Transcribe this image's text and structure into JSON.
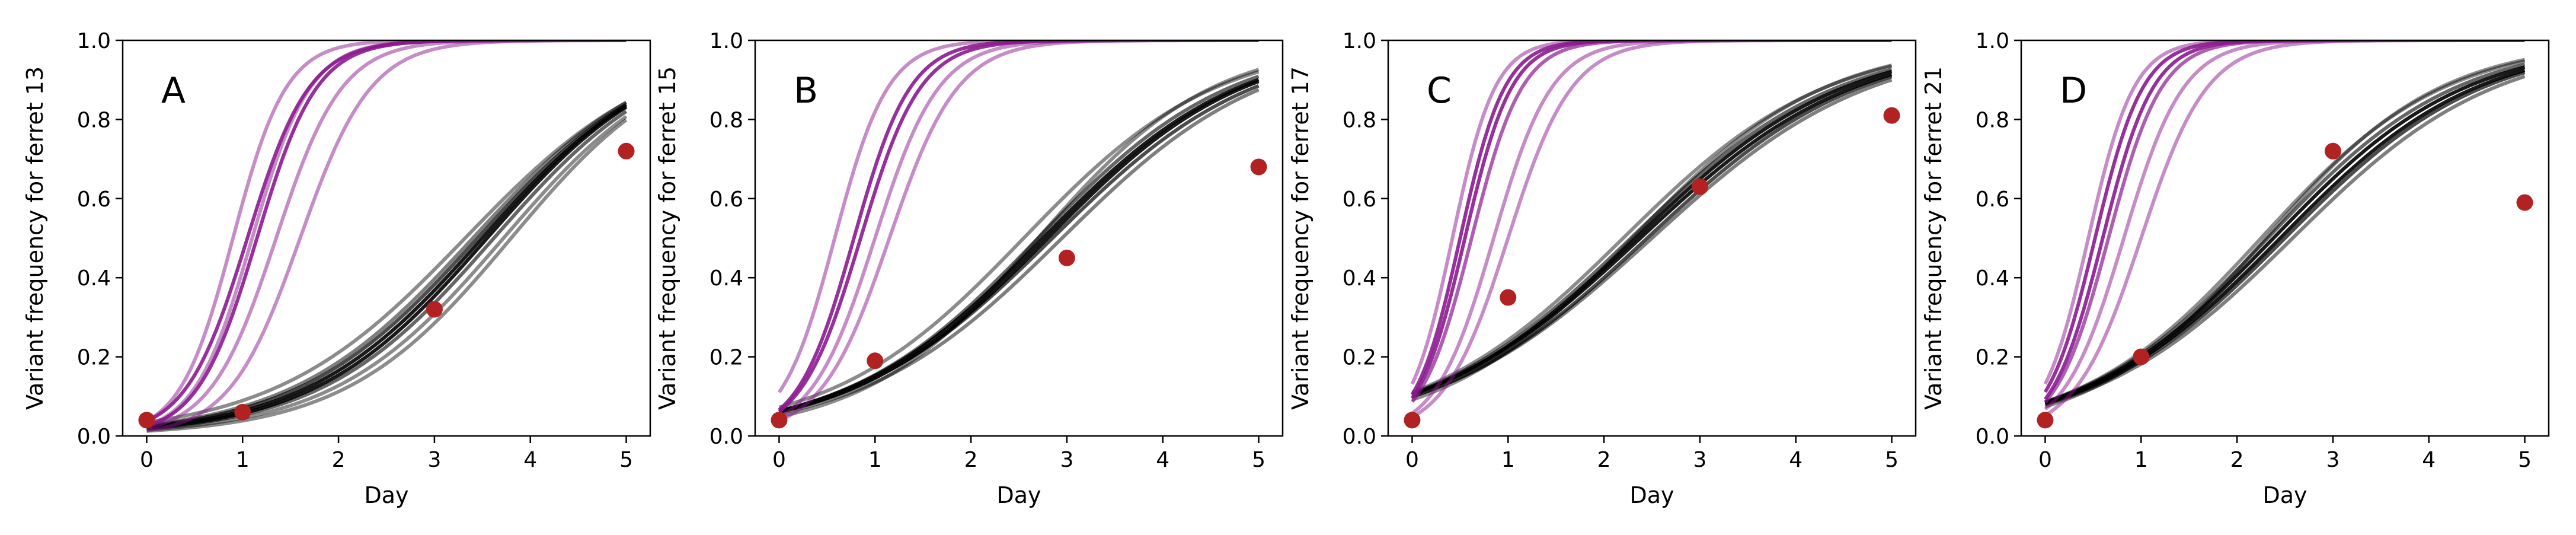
{
  "colors": {
    "purple": "#8b1a8f",
    "black": "#000000",
    "dot": "#b22222"
  },
  "chart_data": [
    {
      "type": "line",
      "panel_label": "A",
      "xlabel": "Day",
      "ylabel": "Variant frequency for ferret 13",
      "xlim": [
        -0.25,
        5.25
      ],
      "ylim": [
        0.0,
        1.0
      ],
      "xticks": [
        "0",
        "1",
        "2",
        "3",
        "4",
        "5"
      ],
      "yticks": [
        "0.0",
        "0.2",
        "0.4",
        "0.6",
        "0.8",
        "1.0"
      ],
      "grid": false,
      "observed": {
        "name": "observed",
        "x": [
          0,
          1,
          3,
          5
        ],
        "y": [
          0.04,
          0.06,
          0.32,
          0.72
        ]
      },
      "purple_curves": {
        "name": "variant simulations",
        "params": [
          {
            "r": 3.6,
            "t0": 0.9,
            "alpha": 0.5
          },
          {
            "r": 3.3,
            "t0": 1.1,
            "alpha": 0.5
          },
          {
            "r": 3.1,
            "t0": 1.05,
            "alpha": 0.9
          },
          {
            "r": 3.2,
            "t0": 1.15,
            "alpha": 0.9
          },
          {
            "r": 2.9,
            "t0": 1.35,
            "alpha": 0.5
          },
          {
            "r": 2.7,
            "t0": 1.6,
            "alpha": 0.5
          }
        ]
      },
      "black_curves": {
        "name": "wild-type simulations",
        "params": [
          {
            "r": 1.15,
            "t0": 3.8,
            "alpha": 0.45
          },
          {
            "r": 1.12,
            "t0": 3.72,
            "alpha": 0.45
          },
          {
            "r": 1.1,
            "t0": 3.62,
            "alpha": 0.6
          },
          {
            "r": 1.1,
            "t0": 3.55,
            "alpha": 0.9
          },
          {
            "r": 1.08,
            "t0": 3.5,
            "alpha": 0.9
          },
          {
            "r": 1.06,
            "t0": 3.45,
            "alpha": 0.7
          },
          {
            "r": 1.05,
            "t0": 3.4,
            "alpha": 0.5
          },
          {
            "r": 1.0,
            "t0": 3.32,
            "alpha": 0.45
          }
        ]
      }
    },
    {
      "type": "line",
      "panel_label": "B",
      "xlabel": "Day",
      "ylabel": "Variant frequency for ferret 15",
      "xlim": [
        -0.25,
        5.25
      ],
      "ylim": [
        0.0,
        1.0
      ],
      "xticks": [
        "0",
        "1",
        "2",
        "3",
        "4",
        "5"
      ],
      "yticks": [
        "0.0",
        "0.2",
        "0.4",
        "0.6",
        "0.8",
        "1.0"
      ],
      "grid": false,
      "observed": {
        "name": "observed",
        "x": [
          0,
          1,
          3,
          5
        ],
        "y": [
          0.04,
          0.19,
          0.45,
          0.68
        ]
      },
      "purple_curves": {
        "name": "variant simulations",
        "params": [
          {
            "r": 3.6,
            "t0": 0.58,
            "alpha": 0.5
          },
          {
            "r": 3.4,
            "t0": 0.78,
            "alpha": 0.9
          },
          {
            "r": 3.2,
            "t0": 0.85,
            "alpha": 0.9
          },
          {
            "r": 3.0,
            "t0": 1.0,
            "alpha": 0.5
          },
          {
            "r": 2.8,
            "t0": 1.15,
            "alpha": 0.5
          }
        ]
      },
      "black_curves": {
        "name": "wild-type simulations",
        "params": [
          {
            "r": 1.0,
            "t0": 2.55,
            "alpha": 0.45
          },
          {
            "r": 1.0,
            "t0": 2.7,
            "alpha": 0.6
          },
          {
            "r": 0.98,
            "t0": 2.75,
            "alpha": 0.9
          },
          {
            "r": 0.98,
            "t0": 2.8,
            "alpha": 0.9
          },
          {
            "r": 0.95,
            "t0": 2.85,
            "alpha": 0.7
          },
          {
            "r": 0.95,
            "t0": 2.95,
            "alpha": 0.5
          },
          {
            "r": 1.1,
            "t0": 2.7,
            "alpha": 0.45
          }
        ]
      }
    },
    {
      "type": "line",
      "panel_label": "C",
      "xlabel": "Day",
      "ylabel": "Variant frequency for ferret 17",
      "xlim": [
        -0.25,
        5.25
      ],
      "ylim": [
        0.0,
        1.0
      ],
      "xticks": [
        "0",
        "1",
        "2",
        "3",
        "4",
        "5"
      ],
      "yticks": [
        "0.0",
        "0.2",
        "0.4",
        "0.6",
        "0.8",
        "1.0"
      ],
      "grid": false,
      "observed": {
        "name": "observed",
        "x": [
          0,
          1,
          3,
          5
        ],
        "y": [
          0.04,
          0.35,
          0.63,
          0.81
        ]
      },
      "purple_curves": {
        "name": "variant simulations",
        "params": [
          {
            "r": 4.5,
            "t0": 0.42,
            "alpha": 0.5
          },
          {
            "r": 4.3,
            "t0": 0.5,
            "alpha": 0.9
          },
          {
            "r": 4.1,
            "t0": 0.55,
            "alpha": 0.9
          },
          {
            "r": 3.8,
            "t0": 0.62,
            "alpha": 0.7
          },
          {
            "r": 3.3,
            "t0": 0.85,
            "alpha": 0.5
          },
          {
            "r": 3.0,
            "t0": 1.0,
            "alpha": 0.5
          }
        ]
      },
      "black_curves": {
        "name": "wild-type simulations",
        "params": [
          {
            "r": 0.95,
            "t0": 2.2,
            "alpha": 0.45
          },
          {
            "r": 0.93,
            "t0": 2.28,
            "alpha": 0.6
          },
          {
            "r": 0.92,
            "t0": 2.33,
            "alpha": 0.9
          },
          {
            "r": 0.9,
            "t0": 2.38,
            "alpha": 0.9
          },
          {
            "r": 0.9,
            "t0": 2.45,
            "alpha": 0.7
          },
          {
            "r": 0.88,
            "t0": 2.5,
            "alpha": 0.5
          },
          {
            "r": 1.0,
            "t0": 2.3,
            "alpha": 0.45
          }
        ]
      }
    },
    {
      "type": "line",
      "panel_label": "D",
      "xlabel": "Day",
      "ylabel": "Variant frequency for ferret 21",
      "xlim": [
        -0.25,
        5.25
      ],
      "ylim": [
        0.0,
        1.0
      ],
      "xticks": [
        "0",
        "1",
        "2",
        "3",
        "4",
        "5"
      ],
      "yticks": [
        "0.0",
        "0.2",
        "0.4",
        "0.6",
        "0.8",
        "1.0"
      ],
      "grid": false,
      "observed": {
        "name": "observed",
        "x": [
          0,
          1,
          3,
          5
        ],
        "y": [
          0.04,
          0.2,
          0.72,
          0.59
        ]
      },
      "purple_curves": {
        "name": "variant simulations",
        "params": [
          {
            "r": 4.2,
            "t0": 0.45,
            "alpha": 0.5
          },
          {
            "r": 4.0,
            "t0": 0.52,
            "alpha": 0.9
          },
          {
            "r": 3.8,
            "t0": 0.6,
            "alpha": 0.9
          },
          {
            "r": 3.6,
            "t0": 0.66,
            "alpha": 0.7
          },
          {
            "r": 3.2,
            "t0": 0.82,
            "alpha": 0.5
          },
          {
            "r": 2.9,
            "t0": 1.0,
            "alpha": 0.5
          }
        ]
      },
      "black_curves": {
        "name": "wild-type simulations",
        "params": [
          {
            "r": 1.05,
            "t0": 2.25,
            "alpha": 0.45
          },
          {
            "r": 1.02,
            "t0": 2.32,
            "alpha": 0.6
          },
          {
            "r": 1.0,
            "t0": 2.38,
            "alpha": 0.9
          },
          {
            "r": 0.98,
            "t0": 2.45,
            "alpha": 0.9
          },
          {
            "r": 0.97,
            "t0": 2.5,
            "alpha": 0.7
          },
          {
            "r": 0.95,
            "t0": 2.58,
            "alpha": 0.5
          },
          {
            "r": 1.1,
            "t0": 2.3,
            "alpha": 0.45
          }
        ]
      }
    }
  ]
}
